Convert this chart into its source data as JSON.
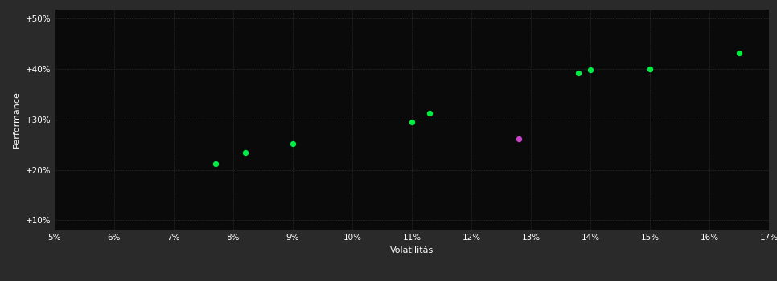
{
  "background_color": "#2a2a2a",
  "plot_bg_color": "#0a0a0a",
  "grid_color": "#404040",
  "text_color": "#ffffff",
  "xlabel": "Volatilitás",
  "ylabel": "Performance",
  "xlim": [
    0.05,
    0.17
  ],
  "ylim": [
    0.08,
    0.52
  ],
  "xticks": [
    0.05,
    0.06,
    0.07,
    0.08,
    0.09,
    0.1,
    0.11,
    0.12,
    0.13,
    0.14,
    0.15,
    0.16,
    0.17
  ],
  "yticks": [
    0.1,
    0.2,
    0.3,
    0.4,
    0.5
  ],
  "ytick_labels": [
    "+10%",
    "+20%",
    "+30%",
    "+40%",
    "+50%"
  ],
  "xtick_labels": [
    "5%",
    "6%",
    "7%",
    "8%",
    "9%",
    "10%",
    "11%",
    "12%",
    "13%",
    "14%",
    "15%",
    "16%",
    "17%"
  ],
  "green_points": [
    [
      0.077,
      0.212
    ],
    [
      0.082,
      0.235
    ],
    [
      0.09,
      0.252
    ],
    [
      0.11,
      0.295
    ],
    [
      0.113,
      0.312
    ],
    [
      0.138,
      0.392
    ],
    [
      0.14,
      0.398
    ],
    [
      0.15,
      0.4
    ],
    [
      0.165,
      0.432
    ]
  ],
  "magenta_points": [
    [
      0.128,
      0.262
    ]
  ],
  "green_color": "#00ee44",
  "magenta_color": "#cc44cc",
  "marker_size": 28
}
